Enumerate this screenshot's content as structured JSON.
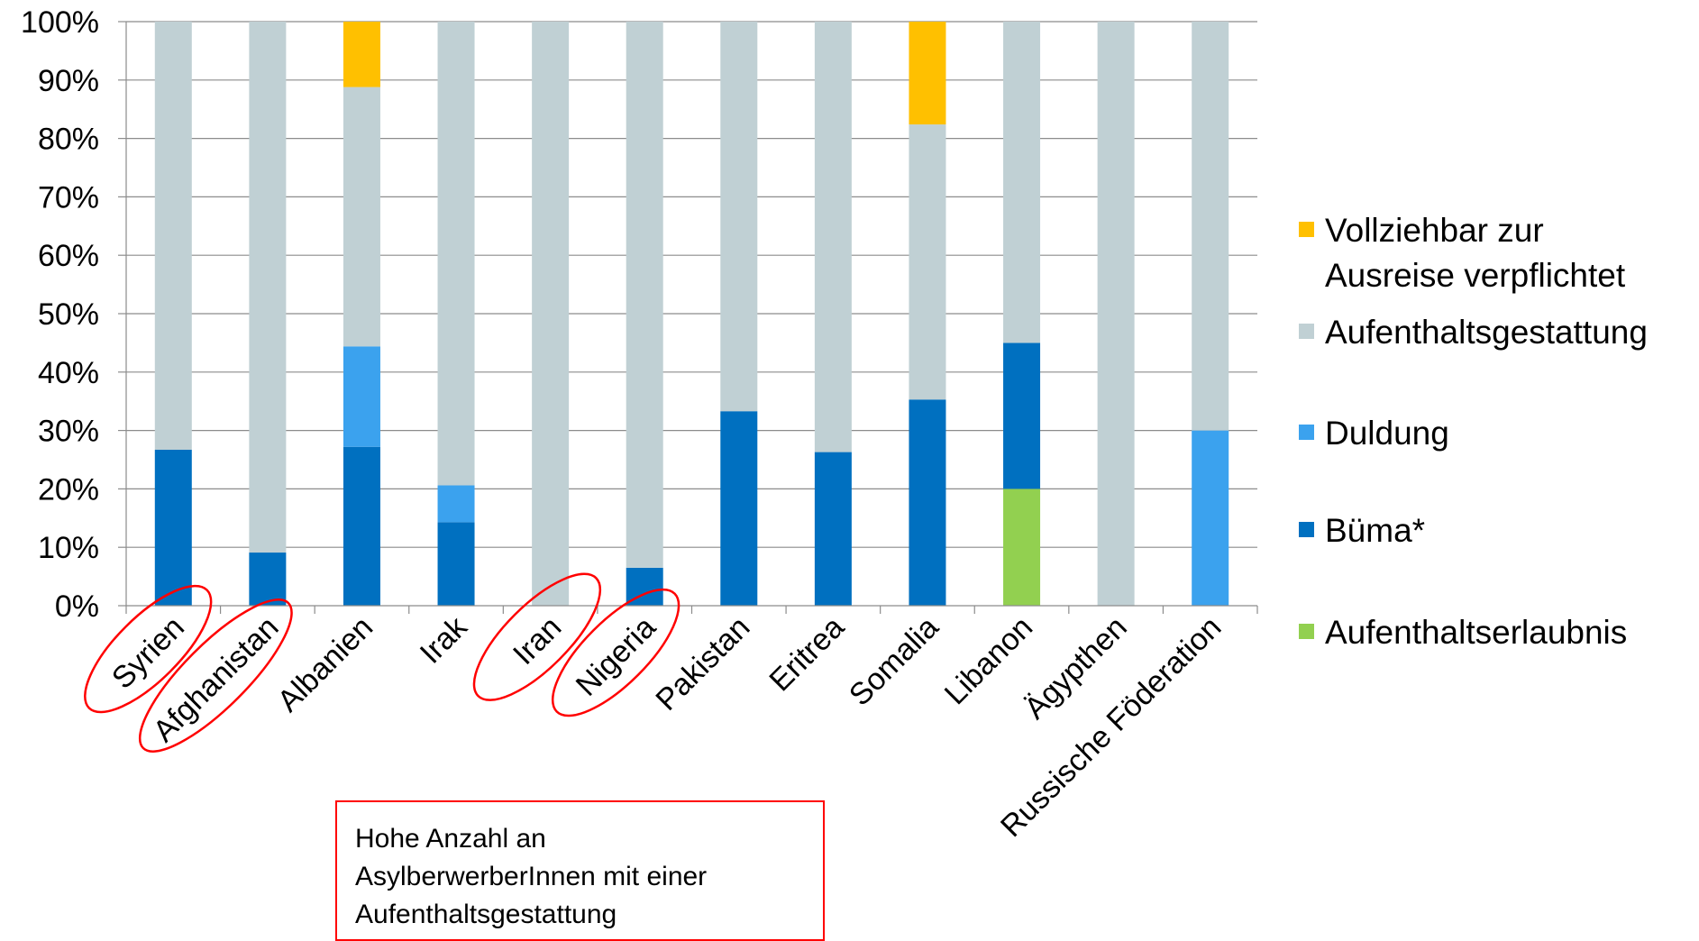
{
  "chart_data": {
    "type": "bar",
    "stacked": true,
    "normalized_percent": true,
    "categories": [
      "Syrien",
      "Afghanistan",
      "Albanien",
      "Irak",
      "Iran",
      "Nigeria",
      "Pakistan",
      "Eritrea",
      "Somalia",
      "Libanon",
      "Ägypthen",
      "Russische Föderation"
    ],
    "series": [
      {
        "name": "Aufenthaltserlaubnis",
        "color": "#92d050",
        "values": [
          0,
          0,
          0,
          0,
          0,
          0,
          0,
          0,
          0,
          20,
          0,
          0
        ]
      },
      {
        "name": "Büma*",
        "color": "#0070c0",
        "values": [
          26.7,
          9.1,
          27.2,
          14.3,
          0,
          6.5,
          33.3,
          26.3,
          35.3,
          25,
          0,
          0
        ]
      },
      {
        "name": "Duldung",
        "color": "#3ba2ee",
        "values": [
          0,
          0,
          17.2,
          6.3,
          0,
          0,
          0,
          0,
          0,
          0,
          0,
          30
        ]
      },
      {
        "name": "Aufenthaltsgestattung",
        "color": "#c0d0d4",
        "values": [
          73.3,
          90.9,
          44.4,
          79.4,
          100,
          93.5,
          66.7,
          73.7,
          47.1,
          55,
          100,
          70
        ]
      },
      {
        "name": "Vollziehbar zur Ausreise verpflichtet",
        "color": "#ffc000",
        "values": [
          0,
          0,
          11.2,
          0,
          0,
          0,
          0,
          0,
          17.6,
          0,
          0,
          0
        ]
      }
    ],
    "y_ticks": [
      "0%",
      "10%",
      "20%",
      "30%",
      "40%",
      "50%",
      "60%",
      "70%",
      "80%",
      "90%",
      "100%"
    ],
    "ylim": [
      0,
      100
    ],
    "grid": true,
    "legend_position": "right",
    "legend": [
      {
        "lines": [
          "Vollziehbar zur",
          "Ausreise verpflichtet"
        ],
        "color": "#ffc000"
      },
      {
        "lines": [
          "Aufenthaltsgestattung"
        ],
        "color": "#c0d0d4"
      },
      {
        "lines": [
          "Duldung"
        ],
        "color": "#3ba2ee"
      },
      {
        "lines": [
          "Büma*"
        ],
        "color": "#0070c0"
      },
      {
        "lines": [
          "Aufenthaltserlaubnis"
        ],
        "color": "#92d050"
      }
    ],
    "highlighted_categories": [
      "Syrien",
      "Afghanistan",
      "Iran",
      "Nigeria"
    ],
    "highlight_color": "#ff0000"
  },
  "annotation": {
    "lines": [
      "Hohe Anzahl an",
      "AsylberwerberInnen mit einer",
      "Aufenthaltsgestattung"
    ],
    "border_color": "#ff0000"
  }
}
